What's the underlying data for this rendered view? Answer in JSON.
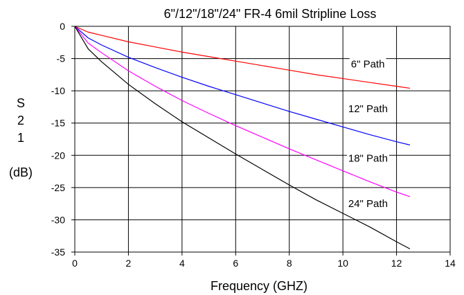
{
  "chart_data": {
    "type": "line",
    "title": "6\"/12\"/18\"/24\" FR-4 6mil Stripline Loss",
    "xlabel": "Frequency (GHZ)",
    "ylabel_lines": [
      "S",
      "2",
      "1",
      "(dB)"
    ],
    "xlim": [
      0,
      14
    ],
    "ylim": [
      -35,
      0
    ],
    "xticks": [
      0,
      2,
      4,
      6,
      8,
      10,
      12,
      14
    ],
    "xtick_labels": [
      "0",
      "2",
      "4",
      "6",
      "8",
      "10",
      "12",
      "14"
    ],
    "yticks": [
      0,
      -5,
      -10,
      -15,
      -20,
      -25,
      -30,
      -35
    ],
    "ytick_labels": [
      "0",
      "-5",
      "-10",
      "-15",
      "-20",
      "-25",
      "-30",
      "-35"
    ],
    "grid": true,
    "legend": "inline labels",
    "series": [
      {
        "name": "6\" Path",
        "color": "#ff0000",
        "label_at": [
          10.3,
          -6.4
        ],
        "x": [
          0,
          0.5,
          1,
          2,
          3,
          4,
          5,
          6,
          7,
          8,
          9,
          10,
          11,
          12,
          12.5
        ],
        "y": [
          0,
          -0.9,
          -1.4,
          -2.4,
          -3.2,
          -4.0,
          -4.7,
          -5.4,
          -6.1,
          -6.8,
          -7.5,
          -8.1,
          -8.7,
          -9.3,
          -9.6
        ]
      },
      {
        "name": "12\" Path",
        "color": "#0000ff",
        "label_at": [
          10.2,
          -13.3
        ],
        "x": [
          0,
          0.5,
          1,
          2,
          3,
          4,
          5,
          6,
          7,
          8,
          9,
          10,
          11,
          12,
          12.5
        ],
        "y": [
          0,
          -1.8,
          -2.9,
          -4.8,
          -6.4,
          -7.9,
          -9.3,
          -10.6,
          -11.9,
          -13.2,
          -14.4,
          -15.6,
          -16.8,
          -17.9,
          -18.4
        ]
      },
      {
        "name": "18\" Path",
        "color": "#ff00ff",
        "label_at": [
          10.2,
          -21.0
        ],
        "x": [
          0,
          0.5,
          1,
          2,
          3,
          4,
          5,
          6,
          7,
          8,
          9,
          10,
          11,
          12,
          12.5
        ],
        "y": [
          0,
          -2.6,
          -4.1,
          -6.9,
          -9.3,
          -11.5,
          -13.5,
          -15.4,
          -17.2,
          -19.0,
          -20.7,
          -22.4,
          -24.1,
          -25.7,
          -26.4
        ]
      },
      {
        "name": "24\" Path",
        "color": "#000000",
        "label_at": [
          10.2,
          -28.0
        ],
        "x": [
          0,
          0.5,
          1,
          2,
          3,
          4,
          5,
          6,
          7,
          8,
          9,
          10,
          11,
          12,
          12.5
        ],
        "y": [
          0,
          -3.5,
          -5.5,
          -9.0,
          -12.0,
          -14.8,
          -17.3,
          -19.8,
          -22.2,
          -24.6,
          -26.9,
          -29.0,
          -31.1,
          -33.4,
          -34.5
        ]
      }
    ]
  }
}
